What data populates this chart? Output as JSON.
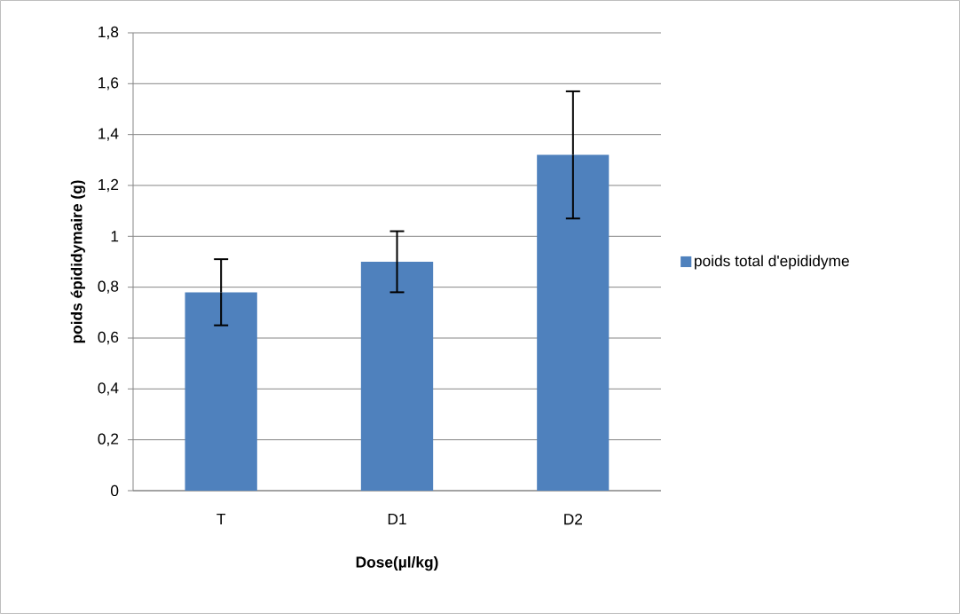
{
  "chart_data": {
    "type": "bar",
    "ylabel": "poids épididymaire (g)",
    "xlabel": "Dose(µl/kg)",
    "categories": [
      "T",
      "D1",
      "D2"
    ],
    "series": [
      {
        "name": "poids total d'epididyme",
        "color": "#4f81bd",
        "values": [
          0.78,
          0.9,
          1.32
        ],
        "errors": [
          0.13,
          0.12,
          0.25
        ]
      }
    ],
    "ylim": [
      0,
      1.8
    ],
    "yticks": [
      0,
      {
        "value": 0.2,
        "label": "0,2"
      },
      {
        "value": 0.4,
        "label": "0,4"
      },
      {
        "value": 0.6,
        "label": "0,6"
      },
      {
        "value": 0.8,
        "label": "0,8"
      },
      1,
      {
        "value": 1.2,
        "label": "1,2"
      },
      {
        "value": 1.4,
        "label": "1,4"
      },
      {
        "value": 1.6,
        "label": "1,6"
      },
      {
        "value": 1.8,
        "label": "1,8"
      }
    ],
    "grid": "y",
    "legend": "right"
  }
}
